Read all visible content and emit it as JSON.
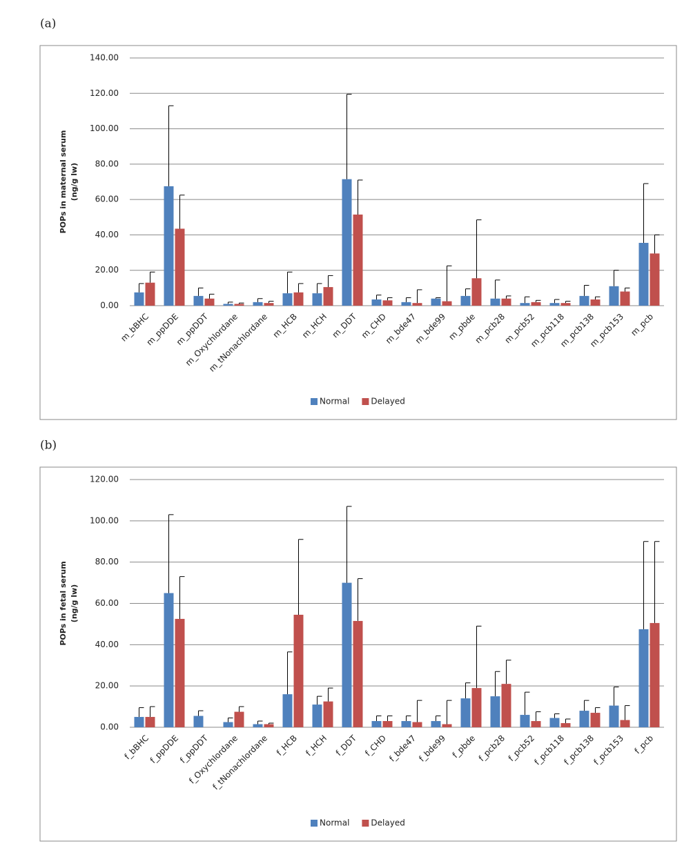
{
  "chart_data": [
    {
      "type": "bar",
      "panel": "(a)",
      "ylabel": [
        "POPs in maternal serum",
        "(ng/g lw)"
      ],
      "categories": [
        "m_bBHC",
        "m_ppDDE",
        "m_ppDDT",
        "m_Oxychlordane",
        "m_tNonachlordane",
        "m_HCB",
        "m_HCH",
        "m_DDT",
        "m_CHD",
        "m_bde47",
        "m_bde99",
        "m_pbde",
        "m_pcb28",
        "m_pcb52",
        "m_pcb118",
        "m_pcb138",
        "m_pcb153",
        "m_pcb"
      ],
      "series": [
        {
          "name": "Normal",
          "color": "#4f81bd",
          "values": [
            7.5,
            67.5,
            5.5,
            1,
            2,
            7,
            7,
            71.5,
            3.5,
            2,
            4,
            5.5,
            4,
            1.5,
            1.5,
            5.5,
            11,
            35.5
          ],
          "errors": [
            5,
            45.5,
            4.5,
            1,
            2,
            12,
            5.5,
            48,
            2.5,
            2.5,
            0.5,
            4,
            10.5,
            3.5,
            2,
            6,
            9,
            33.5
          ]
        },
        {
          "name": "Delayed",
          "color": "#c0504d",
          "values": [
            13,
            43.5,
            4,
            1,
            1.5,
            7.5,
            10.5,
            51.5,
            3,
            1.5,
            2.5,
            15.5,
            4,
            2,
            1.5,
            3.5,
            8,
            29.5
          ],
          "errors": [
            6,
            19,
            2.5,
            0.5,
            1,
            5,
            6.5,
            19.5,
            1.5,
            7.5,
            20,
            33,
            1.5,
            1,
            1,
            1.5,
            2,
            10.5
          ]
        }
      ],
      "ylim": [
        0,
        140
      ],
      "yticks": [
        {
          "value": 0,
          "label": "0.00"
        },
        {
          "value": 20,
          "label": "20.00"
        },
        {
          "value": 40,
          "label": "40.00"
        },
        {
          "value": 60,
          "label": "60.00"
        },
        {
          "value": 80,
          "label": "80.00"
        },
        {
          "value": 100,
          "label": "100.00"
        },
        {
          "value": 120,
          "label": "120.00"
        },
        {
          "value": 140,
          "label": "140.00"
        }
      ],
      "grid": true,
      "legend": "bottom"
    },
    {
      "type": "bar",
      "panel": "(b)",
      "ylabel": [
        "POPs in fetal serum",
        "(ng/g lw)"
      ],
      "categories": [
        "f_bBHC",
        "f_ppDDE",
        "f_ppDDT",
        "f_Oxychlordane",
        "f_tNonachlordane",
        "f_HCB",
        "f_HCH",
        "f_DDT",
        "f_CHD",
        "f_bde47",
        "f_bde99",
        "f_pbde",
        "f_pcb28",
        "f_pcb52",
        "f_pcb118",
        "f_pcb138",
        "f_pcb153",
        "f_pcb"
      ],
      "series": [
        {
          "name": "Normal",
          "color": "#4f81bd",
          "values": [
            5,
            65,
            5.5,
            2.5,
            1.5,
            16,
            11,
            70,
            3,
            3,
            3,
            14,
            15,
            6,
            4.5,
            8,
            10.5,
            47.5
          ],
          "errors": [
            4.5,
            38,
            2.5,
            2,
            1.5,
            20.5,
            4,
            37,
            2.5,
            2.5,
            2.5,
            7.5,
            12,
            11,
            2,
            5,
            9,
            42.5
          ]
        },
        {
          "name": "Delayed",
          "color": "#c0504d",
          "values": [
            5,
            52.5,
            null,
            7.5,
            1.5,
            54.5,
            12.5,
            51.5,
            3,
            2.5,
            1.5,
            19,
            21,
            3,
            2,
            7,
            3.5,
            50.5
          ],
          "errors": [
            5,
            20.5,
            null,
            2.5,
            0.5,
            36.5,
            6.5,
            20.5,
            2.5,
            10.5,
            11.5,
            30,
            11.5,
            4.5,
            2,
            2.5,
            7,
            39.5
          ]
        }
      ],
      "ylim": [
        0,
        120
      ],
      "yticks": [
        {
          "value": 0,
          "label": "0.00"
        },
        {
          "value": 20,
          "label": "20.00"
        },
        {
          "value": 40,
          "label": "40.00"
        },
        {
          "value": 60,
          "label": "60.00"
        },
        {
          "value": 80,
          "label": "80.00"
        },
        {
          "value": 100,
          "label": "100.00"
        },
        {
          "value": 120,
          "label": "120.00"
        }
      ],
      "grid": true,
      "legend": "bottom"
    }
  ]
}
